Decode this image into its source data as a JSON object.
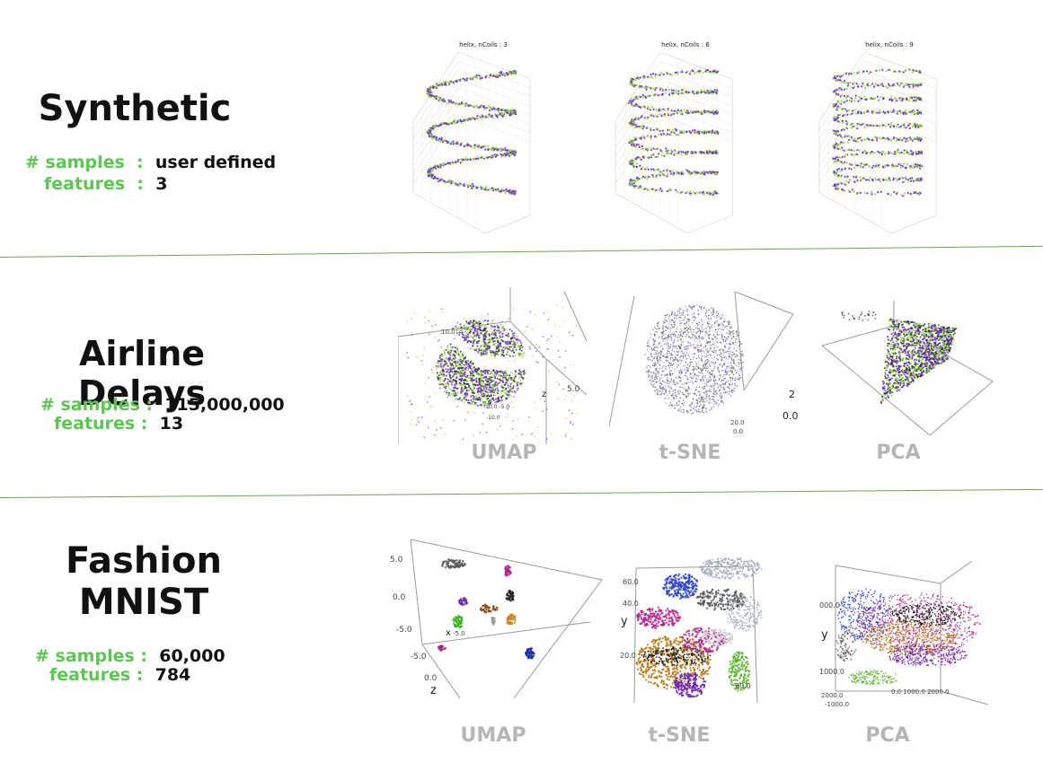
{
  "sections": [
    {
      "title": "Synthetic",
      "samples_label": "# samples",
      "samples_value": "user defined",
      "features_label": "features",
      "features_value": "3",
      "plots": [
        {
          "title": "helix, nCoils : 3",
          "coils": 3
        },
        {
          "title": "helix, nCoils : 6",
          "coils": 6
        },
        {
          "title": "helix, nCoils : 9",
          "coils": 9
        }
      ]
    },
    {
      "title": "Airline Delays",
      "samples_label": "# samples",
      "samples_value": "115,000,000",
      "features_label": "features",
      "features_value": "13",
      "methods": [
        "UMAP",
        "t-SNE",
        "PCA"
      ]
    },
    {
      "title_line1": "Fashion",
      "title_line2": "MNIST",
      "samples_label": "# samples",
      "samples_value": "60,000",
      "features_label": "features",
      "features_value": "784",
      "methods": [
        "UMAP",
        "t-SNE",
        "PCA"
      ]
    }
  ],
  "colors": {
    "label_green": "#5cc653",
    "purple": "#7b22e6",
    "green": "#7ee02a",
    "divider": "#6aa84f",
    "method_grey": "#b5b5b5"
  }
}
